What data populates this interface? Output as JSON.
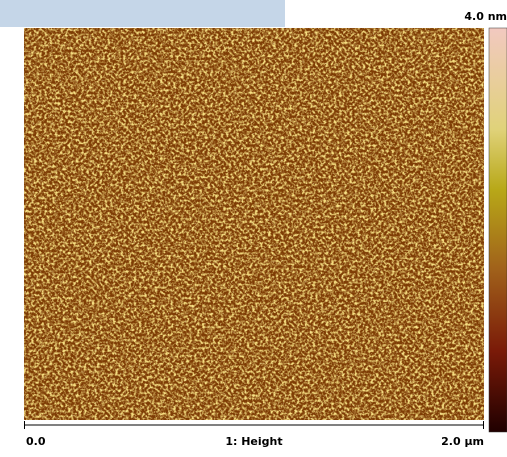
{
  "colorbar": {
    "max_label": "4.0 nm"
  },
  "axis": {
    "start_label": "0.0",
    "channel_label": "1: Height",
    "end_label": "2.0 µm"
  }
}
